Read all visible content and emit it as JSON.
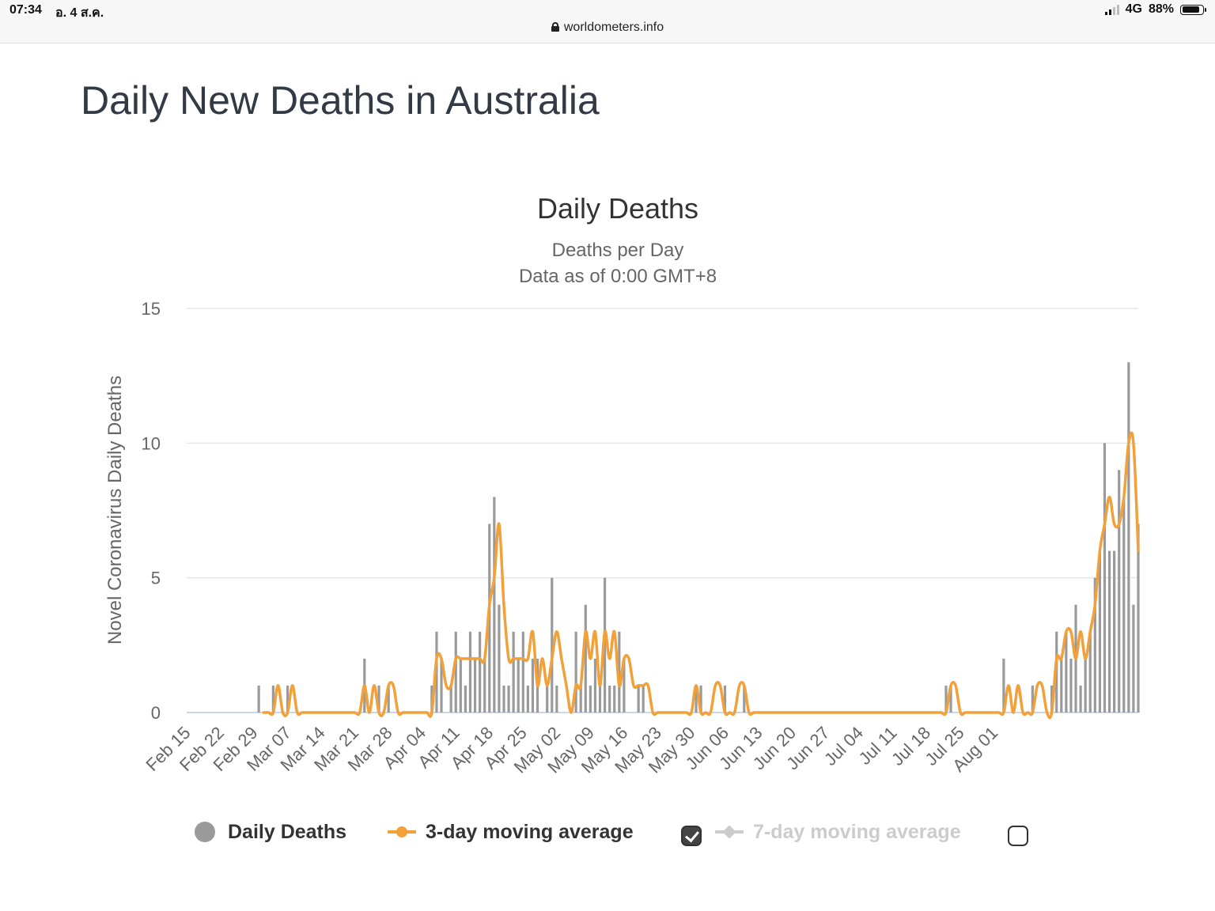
{
  "status_bar": {
    "time": "07:34",
    "date": "อ. 4 ส.ค.",
    "network": "4G",
    "battery": "88%",
    "battery_level": 0.88
  },
  "browser": {
    "address": "worldometers.info",
    "lock_icon": "lock-icon"
  },
  "page": {
    "title": "Daily New Deaths in Australia"
  },
  "colors": {
    "bars": "#9a9a9a",
    "avg3": "#f2a13a",
    "avg7": "#cccccc",
    "grid": "#e6e6e6",
    "xaxis": "#ccd6eb"
  },
  "legend": {
    "daily": "Daily Deaths",
    "avg3": "3-day moving average",
    "avg3_checked": true,
    "avg7": "7-day moving average",
    "avg7_checked": false
  },
  "chart_data": {
    "type": "bar",
    "title": "Daily Deaths",
    "subtitle": "Deaths per Day",
    "subtitle2": "Data as of 0:00 GMT+8",
    "xlabel": "",
    "ylabel": "Novel Coronavirus Daily Deaths",
    "ylim": [
      0,
      15
    ],
    "yticks": [
      0,
      5,
      10,
      15
    ],
    "grid": true,
    "legend_position": "bottom",
    "x_start": "Feb 15",
    "x_end": "Aug 03",
    "xticks": [
      "Feb 15",
      "Feb 22",
      "Feb 29",
      "Mar 07",
      "Mar 14",
      "Mar 21",
      "Mar 28",
      "Apr 04",
      "Apr 11",
      "Apr 18",
      "Apr 25",
      "May 02",
      "May 09",
      "May 16",
      "May 23",
      "May 30",
      "Jun 06",
      "Jun 13",
      "Jun 20",
      "Jun 27",
      "Jul 04",
      "Jul 11",
      "Jul 18",
      "Jul 25",
      "Aug 01"
    ],
    "series": [
      {
        "name": "Daily Deaths",
        "type": "bar",
        "values": [
          0,
          0,
          0,
          0,
          0,
          0,
          0,
          0,
          0,
          0,
          0,
          0,
          0,
          0,
          0,
          1,
          0,
          0,
          1,
          0,
          0,
          1,
          0,
          0,
          0,
          0,
          0,
          0,
          0,
          0,
          0,
          0,
          0,
          0,
          0,
          0,
          0,
          2,
          0,
          0,
          1,
          0,
          1,
          0,
          0,
          0,
          0,
          0,
          0,
          0,
          0,
          1,
          3,
          2,
          0,
          1,
          3,
          2,
          1,
          3,
          2,
          3,
          2,
          7,
          8,
          4,
          1,
          1,
          3,
          2,
          3,
          1,
          2,
          2,
          0,
          1,
          5,
          1,
          0,
          0,
          0,
          3,
          1,
          4,
          1,
          2,
          1,
          5,
          1,
          1,
          3,
          2,
          0,
          0,
          1,
          1,
          0,
          0,
          0,
          0,
          0,
          0,
          0,
          0,
          0,
          0,
          1,
          1,
          0,
          0,
          0,
          0,
          1,
          0,
          0,
          0,
          1,
          0,
          0,
          0,
          0,
          0,
          0,
          0,
          0,
          0,
          0,
          0,
          0,
          0,
          0,
          0,
          0,
          0,
          0,
          0,
          0,
          0,
          0,
          0,
          0,
          0,
          0,
          0,
          0,
          0,
          0,
          0,
          0,
          0,
          0,
          0,
          0,
          0,
          0,
          0,
          0,
          0,
          1,
          1,
          0,
          0,
          0,
          0,
          0,
          0,
          0,
          0,
          0,
          0,
          2,
          0,
          0,
          0,
          0,
          0,
          1,
          0,
          0,
          0,
          1,
          3,
          2,
          3,
          2,
          4,
          1,
          2,
          3,
          5,
          6,
          10,
          6,
          6,
          9,
          8,
          13,
          4,
          7
        ]
      },
      {
        "name": "3-day moving average",
        "type": "line",
        "values": [
          null,
          null,
          null,
          null,
          null,
          null,
          null,
          null,
          null,
          null,
          null,
          null,
          null,
          null,
          null,
          null,
          0,
          0,
          0,
          1,
          0,
          0,
          1,
          0,
          0,
          0,
          0,
          0,
          0,
          0,
          0,
          0,
          0,
          0,
          0,
          0,
          0,
          1,
          0,
          1,
          0,
          0,
          1,
          1,
          0,
          0,
          0,
          0,
          0,
          0,
          0,
          0,
          2,
          2,
          1,
          1,
          2,
          2,
          2,
          2,
          2,
          2,
          2,
          4,
          5,
          7,
          4,
          2,
          2,
          2,
          2,
          2,
          3,
          1,
          2,
          1,
          2,
          3,
          2,
          1,
          0,
          1,
          1,
          3,
          2,
          3,
          1,
          3,
          2,
          3,
          1,
          2,
          2,
          1,
          1,
          1,
          1,
          0,
          0,
          0,
          0,
          0,
          0,
          0,
          0,
          0,
          1,
          0,
          0,
          0,
          1,
          1,
          0,
          0,
          0,
          1,
          1,
          0,
          0,
          0,
          0,
          0,
          0,
          0,
          0,
          0,
          0,
          0,
          0,
          0,
          0,
          0,
          0,
          0,
          0,
          0,
          0,
          0,
          0,
          0,
          0,
          0,
          0,
          0,
          0,
          0,
          0,
          0,
          0,
          0,
          0,
          0,
          0,
          0,
          0,
          0,
          0,
          0,
          0,
          1,
          1,
          0,
          0,
          0,
          0,
          0,
          0,
          0,
          0,
          0,
          0,
          1,
          0,
          1,
          0,
          0,
          0,
          1,
          1,
          0,
          0,
          2,
          2,
          3,
          3,
          2,
          3,
          2,
          3,
          4,
          6,
          7,
          8,
          7,
          7,
          8,
          10,
          10,
          6
        ]
      }
    ]
  }
}
